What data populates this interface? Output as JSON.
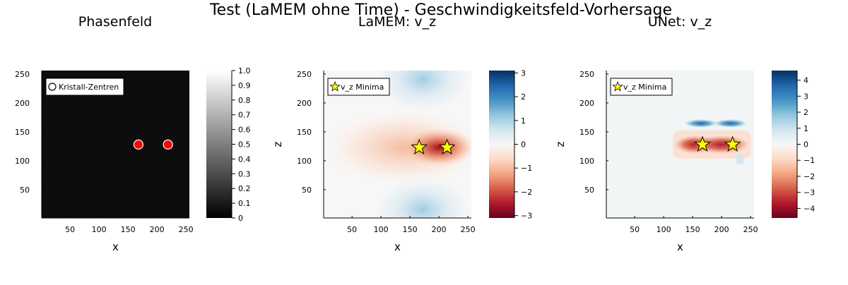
{
  "figure_title": "Test (LaMEM ohne Time) - Geschwindigkeitsfeld-Vorhersage",
  "chart_data": [
    {
      "type": "heatmap",
      "title": "Phasenfeld",
      "xlabel": "x",
      "ylabel": "",
      "xlim": [
        1,
        256
      ],
      "ylim": [
        1,
        256
      ],
      "xticks": [
        "50",
        "100",
        "150",
        "200",
        "250"
      ],
      "yticks": [
        "50",
        "100",
        "150",
        "200",
        "250"
      ],
      "field": "background 0 (black)",
      "colormap": "grayscale",
      "colorbar_range": [
        0,
        1
      ],
      "colorbar_ticks": [
        "0",
        "0.1",
        "0.2",
        "0.3",
        "0.4",
        "0.5",
        "0.6",
        "0.7",
        "0.8",
        "0.9",
        "1.0"
      ],
      "legend": {
        "label": "Kristall-Zentren",
        "placement": "top-left",
        "marker": "circle"
      },
      "points": [
        {
          "x": 168,
          "y": 128
        },
        {
          "x": 219,
          "y": 128
        }
      ],
      "marker_color": "#ff0000",
      "grid": false
    },
    {
      "type": "heatmap",
      "title": "LaMEM: v_z",
      "xlabel": "x",
      "ylabel": "z",
      "xlim": [
        1,
        256
      ],
      "ylim": [
        1,
        256
      ],
      "xticks": [
        "50",
        "100",
        "150",
        "200",
        "250"
      ],
      "yticks": [
        "50",
        "100",
        "150",
        "200",
        "250"
      ],
      "colormap": "RdBu",
      "colorbar_range": [
        -3.1,
        3.1
      ],
      "colorbar_ticks": [
        "−3",
        "−2",
        "−1",
        "0",
        "1",
        "2",
        "3"
      ],
      "colorbar_values": [
        -3,
        -2,
        -1,
        0,
        1,
        2,
        3
      ],
      "legend": {
        "label": "v_z Minima",
        "placement": "top-left",
        "marker": "star"
      },
      "points": [
        {
          "x": 166,
          "y": 123
        },
        {
          "x": 214,
          "y": 123
        }
      ],
      "marker_color": "#ffff00",
      "grid": false
    },
    {
      "type": "heatmap",
      "title": "UNet: v_z",
      "xlabel": "x",
      "ylabel": "z",
      "xlim": [
        1,
        256
      ],
      "ylim": [
        1,
        256
      ],
      "xticks": [
        "50",
        "100",
        "150",
        "200",
        "250"
      ],
      "yticks": [
        "50",
        "100",
        "150",
        "200",
        "250"
      ],
      "colormap": "RdBu",
      "colorbar_range": [
        -4.6,
        4.6
      ],
      "colorbar_ticks": [
        "−4",
        "−3",
        "−2",
        "−1",
        "0",
        "1",
        "2",
        "3",
        "4"
      ],
      "colorbar_values": [
        -4,
        -3,
        -2,
        -1,
        0,
        1,
        2,
        3,
        4
      ],
      "legend": {
        "label": "v_z Minima",
        "placement": "top-left",
        "marker": "star"
      },
      "points": [
        {
          "x": 167,
          "y": 128
        },
        {
          "x": 219,
          "y": 128
        }
      ],
      "marker_color": "#ffff00",
      "grid": false
    }
  ]
}
